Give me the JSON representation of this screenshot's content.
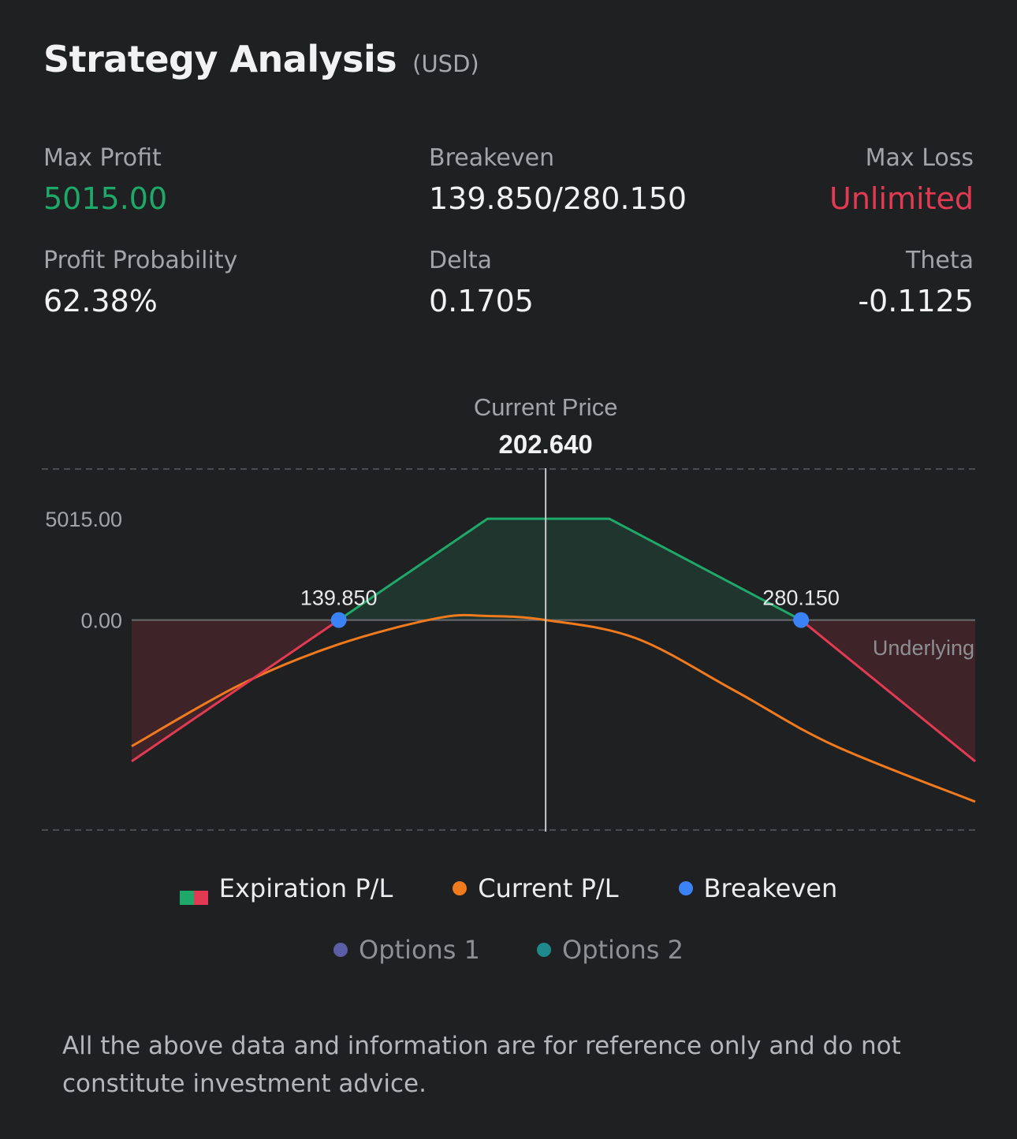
{
  "header": {
    "title": "Strategy Analysis",
    "currency": "(USD)"
  },
  "stats": {
    "max_profit": {
      "label": "Max Profit",
      "value": "5015.00"
    },
    "breakeven": {
      "label": "Breakeven",
      "value": "139.850/280.150"
    },
    "max_loss": {
      "label": "Max Loss",
      "value": "Unlimited"
    },
    "profit_probability": {
      "label": "Profit Probability",
      "value": "62.38%"
    },
    "delta": {
      "label": "Delta",
      "value": "0.1705"
    },
    "theta": {
      "label": "Theta",
      "value": "-0.1125"
    }
  },
  "chart_data": {
    "type": "line",
    "current_price_label": "Current Price",
    "current_price": 202.64,
    "current_price_text": "202.640",
    "xlim": [
      77,
      333
    ],
    "y_ticks": [
      {
        "value": 5015,
        "label": "5015.00"
      },
      {
        "value": 0,
        "label": "0.00"
      }
    ],
    "ylim": [
      -10400,
      7480
    ],
    "axis_label": "Underlying",
    "series": [
      {
        "name": "Expiration P/L",
        "points": [
          [
            77,
            -7000
          ],
          [
            139.85,
            0
          ],
          [
            185,
            5015
          ],
          [
            222,
            5015
          ],
          [
            280.15,
            0
          ],
          [
            333,
            -7000
          ]
        ]
      },
      {
        "name": "Current P/L",
        "points": [
          [
            77,
            -6250
          ],
          [
            110,
            -3200
          ],
          [
            139.85,
            -1200
          ],
          [
            170,
            100
          ],
          [
            185,
            200
          ],
          [
            202.64,
            0
          ],
          [
            230,
            -900
          ],
          [
            260,
            -3500
          ],
          [
            290,
            -6200
          ],
          [
            333,
            -9000
          ]
        ]
      }
    ],
    "breakevens": [
      {
        "value": 139.85,
        "label": "139.850"
      },
      {
        "value": 280.15,
        "label": "280.150"
      }
    ]
  },
  "legend": {
    "expiration": "Expiration P/L",
    "current": "Current P/L",
    "breakeven": "Breakeven",
    "options1": "Options 1",
    "options2": "Options 2"
  },
  "colors": {
    "profit": "#1ea86a",
    "loss": "#e23a53",
    "current": "#f07a1e",
    "breakeven": "#3b82f6",
    "options1": "#5b5ea6",
    "options2": "#1f8a8c"
  },
  "disclaimer": "All the above data and information are for reference only and do not constitute investment advice."
}
